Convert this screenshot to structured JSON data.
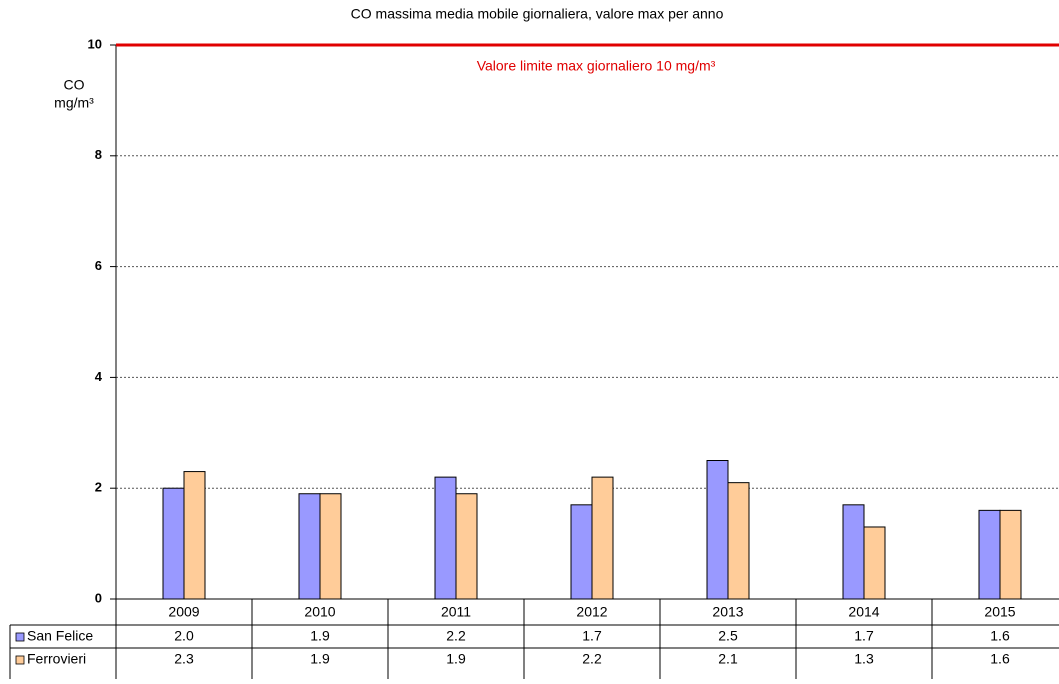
{
  "chart_data": {
    "type": "bar",
    "title": "CO massima media mobile giornaliera, valore max per anno",
    "y_label_line1": "CO",
    "y_label_line2": "mg/m³",
    "limit": {
      "value": 10,
      "label": "Valore limite max giornaliero 10 mg/m³",
      "color": "#e00000"
    },
    "categories": [
      "2009",
      "2010",
      "2011",
      "2012",
      "2013",
      "2014",
      "2015"
    ],
    "series": [
      {
        "name": "San Felice",
        "color": "#9999ff",
        "values": [
          2.0,
          1.9,
          2.2,
          1.7,
          2.5,
          1.7,
          1.6
        ],
        "value_labels": [
          "2.0",
          "1.9",
          "2.2",
          "1.7",
          "2.5",
          "1.7",
          "1.6"
        ]
      },
      {
        "name": "Ferrovieri",
        "color": "#ffcc99",
        "values": [
          2.3,
          1.9,
          1.9,
          2.2,
          2.1,
          1.3,
          1.6
        ],
        "value_labels": [
          "2.3",
          "1.9",
          "1.9",
          "2.2",
          "2.1",
          "1.3",
          "1.6"
        ]
      }
    ],
    "ylim": [
      0,
      10
    ],
    "yticks": [
      0,
      2,
      4,
      6,
      8,
      10
    ],
    "grid": true
  }
}
